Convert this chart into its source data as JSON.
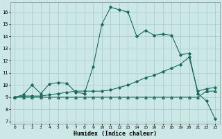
{
  "xlabel": "Humidex (Indice chaleur)",
  "bg_color": "#cce8e6",
  "grid_color": "#aacece",
  "line_color": "#1a6b5a",
  "xlim": [
    -0.5,
    23.5
  ],
  "ylim": [
    6.8,
    16.8
  ],
  "yticks": [
    7,
    8,
    9,
    10,
    11,
    12,
    13,
    14,
    15,
    16
  ],
  "xticks": [
    0,
    1,
    2,
    3,
    4,
    5,
    6,
    7,
    8,
    9,
    10,
    11,
    12,
    13,
    14,
    15,
    16,
    17,
    18,
    19,
    20,
    21,
    22,
    23
  ],
  "s1_x": [
    0,
    1,
    2,
    3,
    4,
    5,
    6,
    7,
    8,
    9,
    10,
    11,
    12,
    13,
    14,
    15,
    16,
    17,
    18,
    19,
    20,
    21,
    22,
    23
  ],
  "s1_y": [
    9.0,
    9.2,
    10.0,
    9.3,
    10.1,
    10.2,
    10.15,
    9.4,
    9.3,
    11.5,
    15.0,
    16.4,
    16.2,
    16.0,
    14.0,
    14.5,
    14.1,
    14.2,
    14.1,
    12.5,
    12.6,
    9.3,
    8.7,
    7.2
  ],
  "s2_x": [
    0,
    1,
    2,
    3,
    4,
    5,
    6,
    7,
    8,
    9,
    10,
    11,
    12,
    13,
    14,
    15,
    16,
    17,
    18,
    19,
    20,
    21,
    22,
    23
  ],
  "s2_y": [
    9.0,
    9.1,
    9.1,
    9.1,
    9.2,
    9.3,
    9.4,
    9.5,
    9.5,
    9.5,
    9.5,
    9.6,
    9.8,
    10.0,
    10.3,
    10.6,
    10.8,
    11.1,
    11.4,
    11.7,
    12.3,
    9.5,
    9.7,
    9.8
  ],
  "s3_x": [
    0,
    1,
    2,
    3,
    4,
    5,
    6,
    7,
    8,
    9,
    10,
    11,
    12,
    13,
    14,
    15,
    16,
    17,
    18,
    19,
    20,
    21,
    22,
    23
  ],
  "s3_y": [
    9.0,
    9.0,
    9.0,
    9.0,
    9.0,
    9.0,
    9.0,
    9.0,
    9.0,
    9.0,
    9.0,
    9.0,
    9.0,
    9.0,
    9.0,
    9.0,
    9.0,
    9.0,
    9.0,
    9.0,
    9.0,
    9.0,
    9.5,
    9.5
  ]
}
